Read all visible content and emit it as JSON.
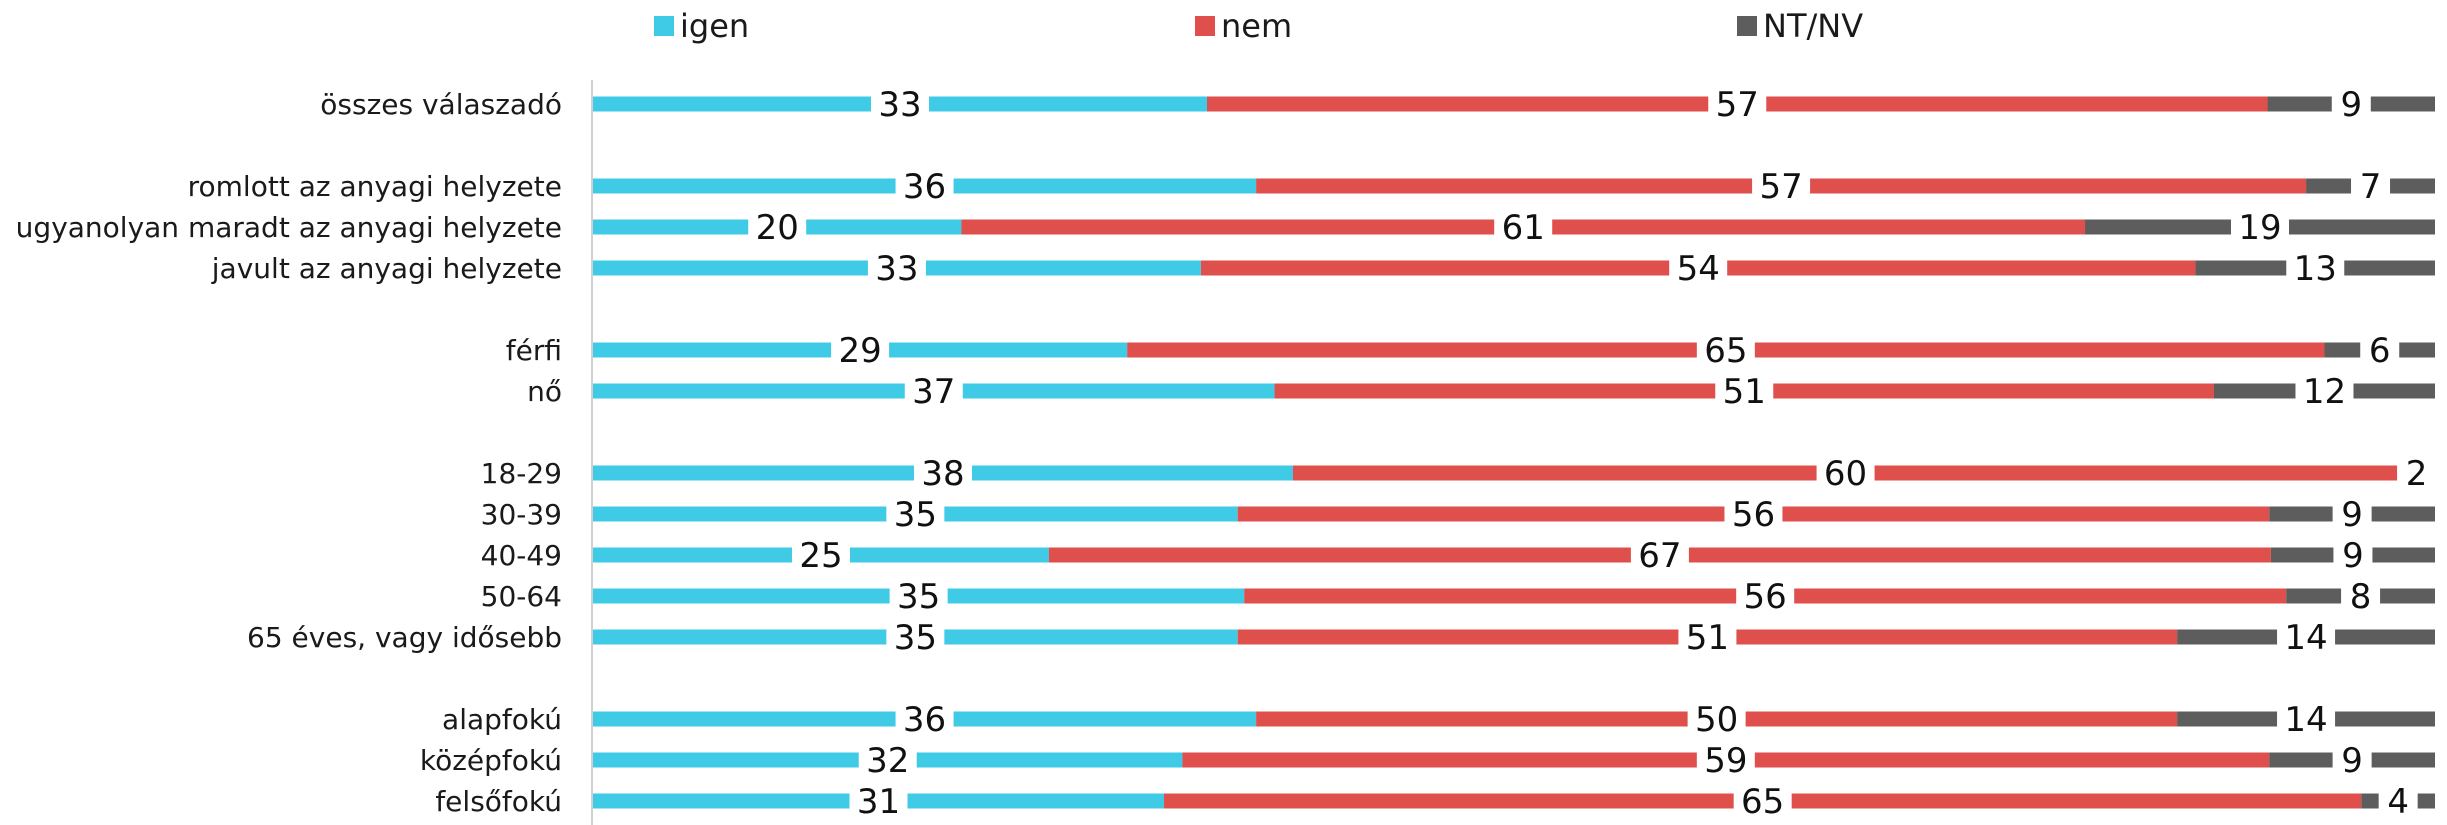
{
  "chart_data": {
    "type": "bar",
    "orientation": "horizontal",
    "stacked": true,
    "percent": true,
    "legend_placement": "top",
    "grid": false,
    "categories": [
      "összes válaszadó",
      "romlott az anyagi helyzete",
      "ugyanolyan maradt az anyagi helyzete",
      "javult az anyagi helyzete",
      "férfi",
      "nő",
      "18-29",
      "30-39",
      "40-49",
      "50-64",
      "65 éves, vagy idősebb",
      "alapfokú",
      "középfokú",
      "felsőfokú"
    ],
    "groups": [
      [
        0
      ],
      [
        1,
        2,
        3
      ],
      [
        4,
        5
      ],
      [
        6,
        7,
        8,
        9,
        10
      ],
      [
        11,
        12,
        13
      ]
    ],
    "series": [
      {
        "name": "igen",
        "color": "#3fcae6",
        "values": [
          33,
          36,
          20,
          33,
          29,
          37,
          38,
          35,
          25,
          35,
          35,
          36,
          32,
          31
        ]
      },
      {
        "name": "nem",
        "color": "#df4f4b",
        "values": [
          57,
          57,
          61,
          54,
          65,
          51,
          60,
          56,
          67,
          56,
          51,
          50,
          59,
          65
        ]
      },
      {
        "name": "NT/NV",
        "color": "#5d5d5d",
        "values": [
          9,
          7,
          19,
          13,
          6,
          12,
          2,
          9,
          9,
          8,
          14,
          14,
          9,
          4
        ]
      }
    ]
  }
}
